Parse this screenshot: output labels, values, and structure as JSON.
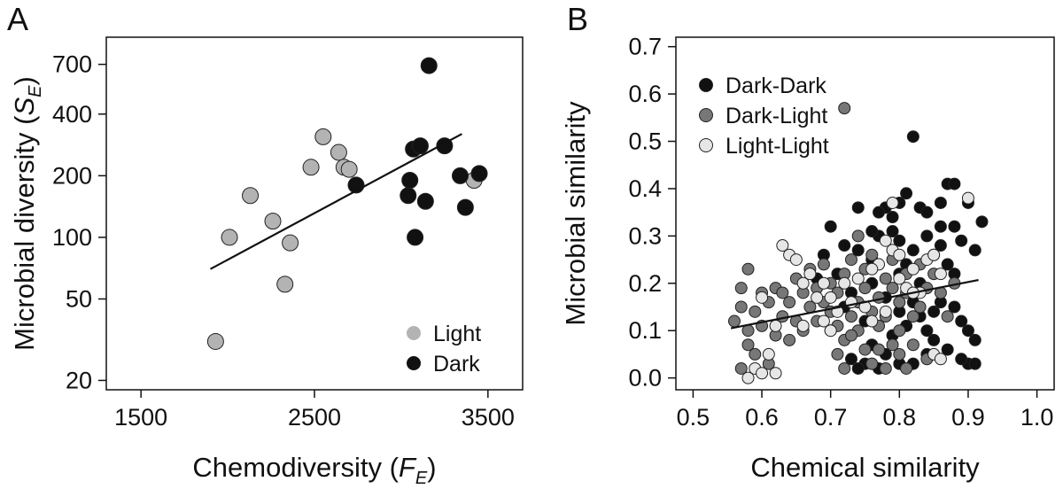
{
  "chart_data": [
    {
      "panel": "A",
      "type": "scatter",
      "xlabel": "Chemodiversity (F",
      "xlabel_sub": "E",
      "xlabel_close": ")",
      "ylabel": "Microbial diversity (S",
      "ylabel_sub": "E",
      "ylabel_close": ")",
      "yscale": "log",
      "xlim": [
        1300,
        3700
      ],
      "ylim": [
        18,
        950
      ],
      "xticks": [
        1500,
        2500,
        3500
      ],
      "xtick_labels": [
        "1500",
        "2500",
        "3500"
      ],
      "yticks": [
        20,
        50,
        100,
        200,
        400,
        700
      ],
      "ytick_labels": [
        "20",
        "50",
        "100",
        "200",
        "400",
        "700"
      ],
      "legend_position": "bottom-right",
      "series": [
        {
          "name": "Light",
          "color": "#b3b3b3",
          "points": [
            [
              1930,
              31
            ],
            [
              2010,
              100
            ],
            [
              2130,
              160
            ],
            [
              2260,
              120
            ],
            [
              2330,
              59
            ],
            [
              2360,
              94
            ],
            [
              2480,
              220
            ],
            [
              2550,
              310
            ],
            [
              2640,
              260
            ],
            [
              2670,
              220
            ],
            [
              2700,
              215
            ],
            [
              3420,
              190
            ]
          ]
        },
        {
          "name": "Dark",
          "color": "#111111",
          "points": [
            [
              2740,
              180
            ],
            [
              3040,
              160
            ],
            [
              3050,
              190
            ],
            [
              3070,
              270
            ],
            [
              3080,
              100
            ],
            [
              3110,
              280
            ],
            [
              3140,
              150
            ],
            [
              3160,
              690
            ],
            [
              3250,
              280
            ],
            [
              3340,
              200
            ],
            [
              3370,
              140
            ],
            [
              3450,
              205
            ]
          ]
        }
      ],
      "fit_line": {
        "x": [
          1900,
          3350
        ],
        "y": [
          70,
          320
        ]
      }
    },
    {
      "panel": "B",
      "type": "scatter",
      "xlabel": "Chemical similarity",
      "ylabel": "Microbial similarity",
      "xlim": [
        0.475,
        1.025
      ],
      "ylim": [
        -0.025,
        0.72
      ],
      "xticks": [
        0.5,
        0.6,
        0.7,
        0.8,
        0.9,
        1.0
      ],
      "xtick_labels": [
        "0.5",
        "0.6",
        "0.7",
        "0.8",
        "0.9",
        "1.0"
      ],
      "yticks": [
        0.0,
        0.1,
        0.2,
        0.3,
        0.4,
        0.5,
        0.6,
        0.7
      ],
      "ytick_labels": [
        "0.0",
        "0.1",
        "0.2",
        "0.3",
        "0.4",
        "0.5",
        "0.6",
        "0.7"
      ],
      "legend_position": "top-left",
      "series": [
        {
          "name": "Dark-Dark",
          "color": "#111111",
          "points": [
            [
              0.82,
              0.51
            ],
            [
              0.87,
              0.41
            ],
            [
              0.88,
              0.41
            ],
            [
              0.92,
              0.33
            ],
            [
              0.83,
              0.36
            ],
            [
              0.86,
              0.37
            ],
            [
              0.78,
              0.36
            ],
            [
              0.74,
              0.36
            ],
            [
              0.81,
              0.39
            ],
            [
              0.79,
              0.34
            ],
            [
              0.8,
              0.29
            ],
            [
              0.77,
              0.3
            ],
            [
              0.84,
              0.3
            ],
            [
              0.85,
              0.26
            ],
            [
              0.72,
              0.28
            ],
            [
              0.7,
              0.32
            ],
            [
              0.76,
              0.25
            ],
            [
              0.82,
              0.27
            ],
            [
              0.86,
              0.32
            ],
            [
              0.89,
              0.29
            ],
            [
              0.91,
              0.27
            ],
            [
              0.88,
              0.22
            ],
            [
              0.9,
              0.1
            ],
            [
              0.91,
              0.08
            ],
            [
              0.89,
              0.12
            ],
            [
              0.9,
              0.03
            ],
            [
              0.91,
              0.03
            ],
            [
              0.89,
              0.04
            ],
            [
              0.87,
              0.06
            ],
            [
              0.85,
              0.08
            ],
            [
              0.83,
              0.13
            ],
            [
              0.86,
              0.16
            ],
            [
              0.88,
              0.15
            ],
            [
              0.84,
              0.05
            ],
            [
              0.82,
              0.03
            ],
            [
              0.8,
              0.03
            ],
            [
              0.78,
              0.05
            ],
            [
              0.76,
              0.07
            ],
            [
              0.75,
              0.03
            ],
            [
              0.74,
              0.02
            ],
            [
              0.73,
              0.04
            ],
            [
              0.77,
              0.02
            ],
            [
              0.79,
              0.09
            ],
            [
              0.81,
              0.11
            ],
            [
              0.75,
              0.12
            ],
            [
              0.73,
              0.18
            ],
            [
              0.8,
              0.22
            ],
            [
              0.78,
              0.17
            ],
            [
              0.76,
              0.2
            ],
            [
              0.83,
              0.2
            ],
            [
              0.81,
              0.24
            ],
            [
              0.87,
              0.24
            ],
            [
              0.69,
              0.26
            ],
            [
              0.71,
              0.22
            ],
            [
              0.79,
              0.31
            ],
            [
              0.77,
              0.35
            ],
            [
              0.8,
              0.37
            ],
            [
              0.84,
              0.35
            ],
            [
              0.86,
              0.28
            ],
            [
              0.9,
              0.37
            ],
            [
              0.88,
              0.32
            ],
            [
              0.82,
              0.16
            ],
            [
              0.85,
              0.14
            ],
            [
              0.84,
              0.1
            ],
            [
              0.8,
              0.14
            ],
            [
              0.7,
              0.1
            ],
            [
              0.72,
              0.15
            ],
            [
              0.74,
              0.27
            ],
            [
              0.68,
              0.21
            ],
            [
              0.76,
              0.31
            ]
          ]
        },
        {
          "name": "Dark-Light",
          "color": "#777777",
          "points": [
            [
              0.72,
              0.57
            ],
            [
              0.56,
              0.12
            ],
            [
              0.57,
              0.15
            ],
            [
              0.57,
              0.19
            ],
            [
              0.58,
              0.23
            ],
            [
              0.58,
              0.1
            ],
            [
              0.58,
              0.07
            ],
            [
              0.59,
              0.14
            ],
            [
              0.59,
              0.05
            ],
            [
              0.6,
              0.18
            ],
            [
              0.6,
              0.11
            ],
            [
              0.61,
              0.03
            ],
            [
              0.61,
              0.16
            ],
            [
              0.62,
              0.09
            ],
            [
              0.62,
              0.19
            ],
            [
              0.63,
              0.13
            ],
            [
              0.64,
              0.16
            ],
            [
              0.64,
              0.08
            ],
            [
              0.65,
              0.12
            ],
            [
              0.65,
              0.21
            ],
            [
              0.66,
              0.18
            ],
            [
              0.66,
              0.1
            ],
            [
              0.67,
              0.15
            ],
            [
              0.67,
              0.23
            ],
            [
              0.68,
              0.12
            ],
            [
              0.68,
              0.19
            ],
            [
              0.69,
              0.16
            ],
            [
              0.69,
              0.24
            ],
            [
              0.7,
              0.14
            ],
            [
              0.7,
              0.2
            ],
            [
              0.71,
              0.18
            ],
            [
              0.71,
              0.11
            ],
            [
              0.72,
              0.22
            ],
            [
              0.72,
              0.08
            ],
            [
              0.73,
              0.13
            ],
            [
              0.73,
              0.25
            ],
            [
              0.74,
              0.16
            ],
            [
              0.74,
              0.1
            ],
            [
              0.75,
              0.19
            ],
            [
              0.75,
              0.23
            ],
            [
              0.75,
              0.06
            ],
            [
              0.76,
              0.14
            ],
            [
              0.76,
              0.03
            ],
            [
              0.77,
              0.17
            ],
            [
              0.77,
              0.11
            ],
            [
              0.78,
              0.21
            ],
            [
              0.78,
              0.13
            ],
            [
              0.78,
              0.02
            ],
            [
              0.79,
              0.19
            ],
            [
              0.79,
              0.25
            ],
            [
              0.79,
              0.07
            ],
            [
              0.8,
              0.16
            ],
            [
              0.8,
              0.1
            ],
            [
              0.81,
              0.18
            ],
            [
              0.81,
              0.22
            ],
            [
              0.82,
              0.13
            ],
            [
              0.82,
              0.07
            ],
            [
              0.83,
              0.24
            ],
            [
              0.83,
              0.15
            ],
            [
              0.84,
              0.19
            ],
            [
              0.84,
              0.04
            ],
            [
              0.85,
              0.22
            ],
            [
              0.86,
              0.18
            ],
            [
              0.87,
              0.13
            ],
            [
              0.88,
              0.2
            ],
            [
              0.76,
              0.26
            ],
            [
              0.74,
              0.3
            ],
            [
              0.73,
              0.09
            ],
            [
              0.77,
              0.06
            ],
            [
              0.8,
              0.05
            ],
            [
              0.81,
              0.02
            ],
            [
              0.72,
              0.02
            ],
            [
              0.71,
              0.05
            ],
            [
              0.63,
              0.18
            ],
            [
              0.57,
              0.02
            ]
          ]
        },
        {
          "name": "Light-Light",
          "color": "#e6e6e6",
          "points": [
            [
              0.63,
              0.28
            ],
            [
              0.64,
              0.26
            ],
            [
              0.65,
              0.25
            ],
            [
              0.66,
              0.2
            ],
            [
              0.67,
              0.22
            ],
            [
              0.68,
              0.17
            ],
            [
              0.69,
              0.12
            ],
            [
              0.7,
              0.1
            ],
            [
              0.71,
              0.14
            ],
            [
              0.72,
              0.2
            ],
            [
              0.73,
              0.16
            ],
            [
              0.74,
              0.21
            ],
            [
              0.75,
              0.15
            ],
            [
              0.76,
              0.12
            ],
            [
              0.77,
              0.24
            ],
            [
              0.78,
              0.29
            ],
            [
              0.79,
              0.27
            ],
            [
              0.8,
              0.21
            ],
            [
              0.81,
              0.19
            ],
            [
              0.82,
              0.23
            ],
            [
              0.83,
              0.18
            ],
            [
              0.84,
              0.25
            ],
            [
              0.85,
              0.26
            ],
            [
              0.86,
              0.22
            ],
            [
              0.8,
              0.26
            ],
            [
              0.79,
              0.37
            ],
            [
              0.9,
              0.38
            ],
            [
              0.58,
              0.0
            ],
            [
              0.59,
              0.02
            ],
            [
              0.6,
              0.01
            ],
            [
              0.62,
              0.01
            ],
            [
              0.61,
              0.05
            ],
            [
              0.6,
              0.17
            ],
            [
              0.62,
              0.11
            ],
            [
              0.66,
              0.11
            ],
            [
              0.69,
              0.2
            ],
            [
              0.78,
              0.14
            ],
            [
              0.82,
              0.18
            ],
            [
              0.85,
              0.05
            ],
            [
              0.86,
              0.04
            ],
            [
              0.7,
              0.17
            ],
            [
              0.76,
              0.23
            ]
          ]
        }
      ],
      "fit_line": {
        "x": [
          0.555,
          0.915
        ],
        "y": [
          0.105,
          0.207
        ]
      }
    }
  ]
}
